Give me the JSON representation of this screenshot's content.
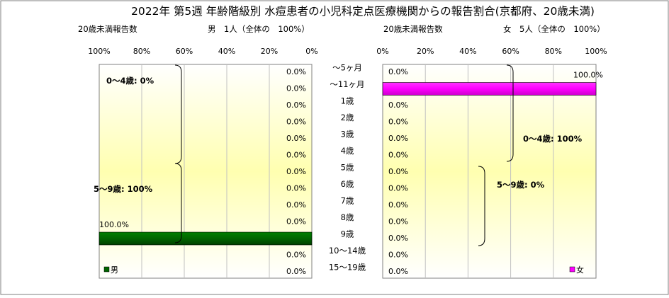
{
  "title": "2022年 第5週 年齢階級別 水痘患者の小児科定点医療機関からの報告割合(京都府、20歳未満)",
  "age_groups": [
    "～5ヶ月",
    "～11ヶ月",
    "1歳",
    "2歳",
    "3歳",
    "4歳",
    "5歳",
    "6歳",
    "7歳",
    "8歳",
    "9歳",
    "10～14歳",
    "15～19歳"
  ],
  "male": {
    "header_label": "20歳未満報告数",
    "header_summary": "男　1人（全体の　100%）",
    "legend": "男",
    "ticks": [
      "100%",
      "80%",
      "60%",
      "40%",
      "20%",
      "0%"
    ],
    "group_labels": [
      "0～4歳: 0%",
      "5～9歳: 100%"
    ],
    "color": "#006400"
  },
  "female": {
    "header_label": "20歳未満報告数",
    "header_summary": "女　5人（全体の　100%）",
    "legend": "女",
    "ticks": [
      "0%",
      "20%",
      "40%",
      "60%",
      "80%",
      "100%"
    ],
    "group_labels": [
      "0～4歳: 100%",
      "5～9歳: 0%"
    ],
    "color": "#ff00ff"
  },
  "chart_data": [
    {
      "type": "bar",
      "orientation": "horizontal",
      "direction": "right-to-left",
      "categories": [
        "～5ヶ月",
        "～11ヶ月",
        "1歳",
        "2歳",
        "3歳",
        "4歳",
        "5歳",
        "6歳",
        "7歳",
        "8歳",
        "9歳",
        "10～14歳",
        "15～19歳"
      ],
      "series": [
        {
          "name": "男",
          "values": [
            0,
            0,
            0,
            0,
            0,
            0,
            0,
            0,
            0,
            0,
            100,
            0,
            0
          ]
        }
      ],
      "value_labels": [
        "0.0%",
        "0.0%",
        "0.0%",
        "0.0%",
        "0.0%",
        "0.0%",
        "0.0%",
        "0.0%",
        "0.0%",
        "0.0%",
        "100.0%",
        "0.0%",
        "0.0%"
      ],
      "xlim": [
        0,
        100
      ],
      "legend_position": "bottom-left",
      "grid": true
    },
    {
      "type": "bar",
      "orientation": "horizontal",
      "direction": "left-to-right",
      "categories": [
        "～5ヶ月",
        "～11ヶ月",
        "1歳",
        "2歳",
        "3歳",
        "4歳",
        "5歳",
        "6歳",
        "7歳",
        "8歳",
        "9歳",
        "10～14歳",
        "15～19歳"
      ],
      "series": [
        {
          "name": "女",
          "values": [
            0,
            100,
            0,
            0,
            0,
            0,
            0,
            0,
            0,
            0,
            0,
            0,
            0
          ]
        }
      ],
      "value_labels": [
        "0.0%",
        "100.0%",
        "0.0%",
        "0.0%",
        "0.0%",
        "0.0%",
        "0.0%",
        "0.0%",
        "0.0%",
        "0.0%",
        "0.0%",
        "0.0%",
        "0.0%"
      ],
      "xlim": [
        0,
        100
      ],
      "legend_position": "bottom-right",
      "grid": true
    }
  ]
}
